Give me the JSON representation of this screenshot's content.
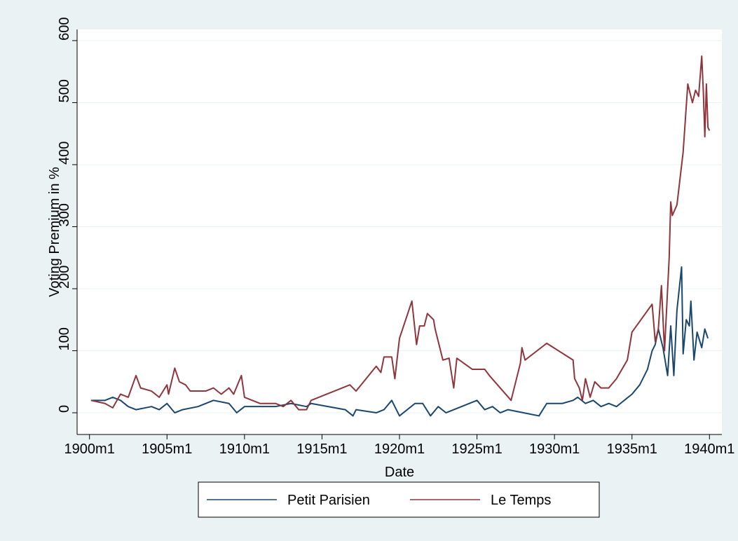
{
  "chart_data": {
    "type": "line",
    "xlabel": "Date",
    "ylabel": "Voting Premium in %",
    "xlim": [
      1899.2,
      1940.8
    ],
    "ylim": [
      -35,
      618
    ],
    "xticks": [
      {
        "value": 1900,
        "label": "1900m1"
      },
      {
        "value": 1905,
        "label": "1905m1"
      },
      {
        "value": 1910,
        "label": "1910m1"
      },
      {
        "value": 1915,
        "label": "1915m1"
      },
      {
        "value": 1920,
        "label": "1920m1"
      },
      {
        "value": 1925,
        "label": "1925m1"
      },
      {
        "value": 1930,
        "label": "1930m1"
      },
      {
        "value": 1935,
        "label": "1935m1"
      },
      {
        "value": 1940,
        "label": "1940m1"
      }
    ],
    "yticks": [
      0,
      100,
      200,
      300,
      400,
      500,
      600
    ],
    "grid": true,
    "legend": "bottom",
    "series": [
      {
        "name": "Petit Parisien",
        "color": "#1a476f",
        "x": [
          1900.1,
          1901,
          1901.5,
          1902,
          1902.5,
          1903,
          1904,
          1904.5,
          1905,
          1905.5,
          1906,
          1907,
          1908,
          1909,
          1909.5,
          1910,
          1911,
          1912,
          1913,
          1914,
          1914.3,
          1916.5,
          1917,
          1917.2,
          1918.5,
          1919,
          1919.5,
          1920,
          1921,
          1921.5,
          1922,
          1922.5,
          1923,
          1924,
          1925,
          1925.5,
          1926,
          1926.5,
          1927,
          1928,
          1929,
          1929.5,
          1930.5,
          1931.2,
          1931.5,
          1932,
          1932.5,
          1933,
          1933.5,
          1934,
          1934.5,
          1935,
          1935.5,
          1936,
          1936.3,
          1936.5,
          1936.7,
          1937,
          1937.3,
          1937.5,
          1937.7,
          1937.9,
          1938.2,
          1938.3,
          1938.5,
          1938.7,
          1938.8,
          1939,
          1939.2,
          1939.5,
          1939.7,
          1939.9
        ],
        "values": [
          20,
          20,
          25,
          20,
          10,
          5,
          10,
          5,
          15,
          0,
          5,
          10,
          20,
          15,
          0,
          10,
          10,
          10,
          15,
          10,
          15,
          5,
          -5,
          5,
          0,
          5,
          20,
          -5,
          15,
          15,
          -5,
          10,
          0,
          10,
          20,
          5,
          10,
          0,
          5,
          0,
          -5,
          15,
          15,
          20,
          25,
          15,
          20,
          10,
          15,
          10,
          20,
          30,
          45,
          70,
          100,
          110,
          135,
          105,
          60,
          140,
          60,
          165,
          235,
          95,
          150,
          140,
          180,
          85,
          130,
          105,
          135,
          120
        ]
      },
      {
        "name": "Le Temps",
        "color": "#90353b",
        "x": [
          1900.1,
          1901,
          1901.5,
          1902,
          1902.5,
          1903,
          1903.3,
          1904,
          1904.5,
          1905,
          1905.1,
          1905.5,
          1905.8,
          1906.2,
          1906.5,
          1907.5,
          1908,
          1908.5,
          1909,
          1909.3,
          1909.8,
          1910,
          1910.5,
          1911,
          1912,
          1912.5,
          1913,
          1913.5,
          1914,
          1914.3,
          1916.8,
          1917.2,
          1918.5,
          1918.8,
          1919,
          1919.5,
          1919.7,
          1920,
          1920.8,
          1921.1,
          1921.3,
          1921.6,
          1921.8,
          1922.2,
          1922.3,
          1922.5,
          1922.8,
          1923.2,
          1923.5,
          1923.7,
          1924.7,
          1925.5,
          1925.8,
          1927.2,
          1927.8,
          1927.9,
          1928.1,
          1929.5,
          1931.2,
          1931.3,
          1931.6,
          1931.8,
          1932,
          1932.3,
          1932.6,
          1933,
          1933.5,
          1934,
          1934.7,
          1935,
          1936.3,
          1936.5,
          1936.7,
          1936.9,
          1937.1,
          1937.4,
          1937.5,
          1937.6,
          1937.9,
          1938.3,
          1938.6,
          1938.9,
          1939.1,
          1939.3,
          1939.5,
          1939.6,
          1939.7,
          1939.8,
          1939.9,
          1940
        ],
        "values": [
          20,
          15,
          8,
          30,
          25,
          60,
          40,
          35,
          25,
          45,
          30,
          72,
          50,
          45,
          35,
          35,
          40,
          30,
          40,
          30,
          60,
          25,
          20,
          15,
          15,
          10,
          20,
          5,
          5,
          20,
          45,
          35,
          75,
          65,
          90,
          90,
          55,
          120,
          180,
          110,
          140,
          140,
          160,
          150,
          135,
          115,
          85,
          88,
          40,
          88,
          70,
          70,
          60,
          20,
          80,
          105,
          85,
          112,
          85,
          55,
          40,
          20,
          55,
          25,
          50,
          40,
          40,
          55,
          85,
          130,
          175,
          115,
          135,
          205,
          100,
          250,
          340,
          318,
          335,
          420,
          530,
          500,
          520,
          510,
          575,
          520,
          445,
          530,
          460,
          455
        ]
      }
    ]
  }
}
